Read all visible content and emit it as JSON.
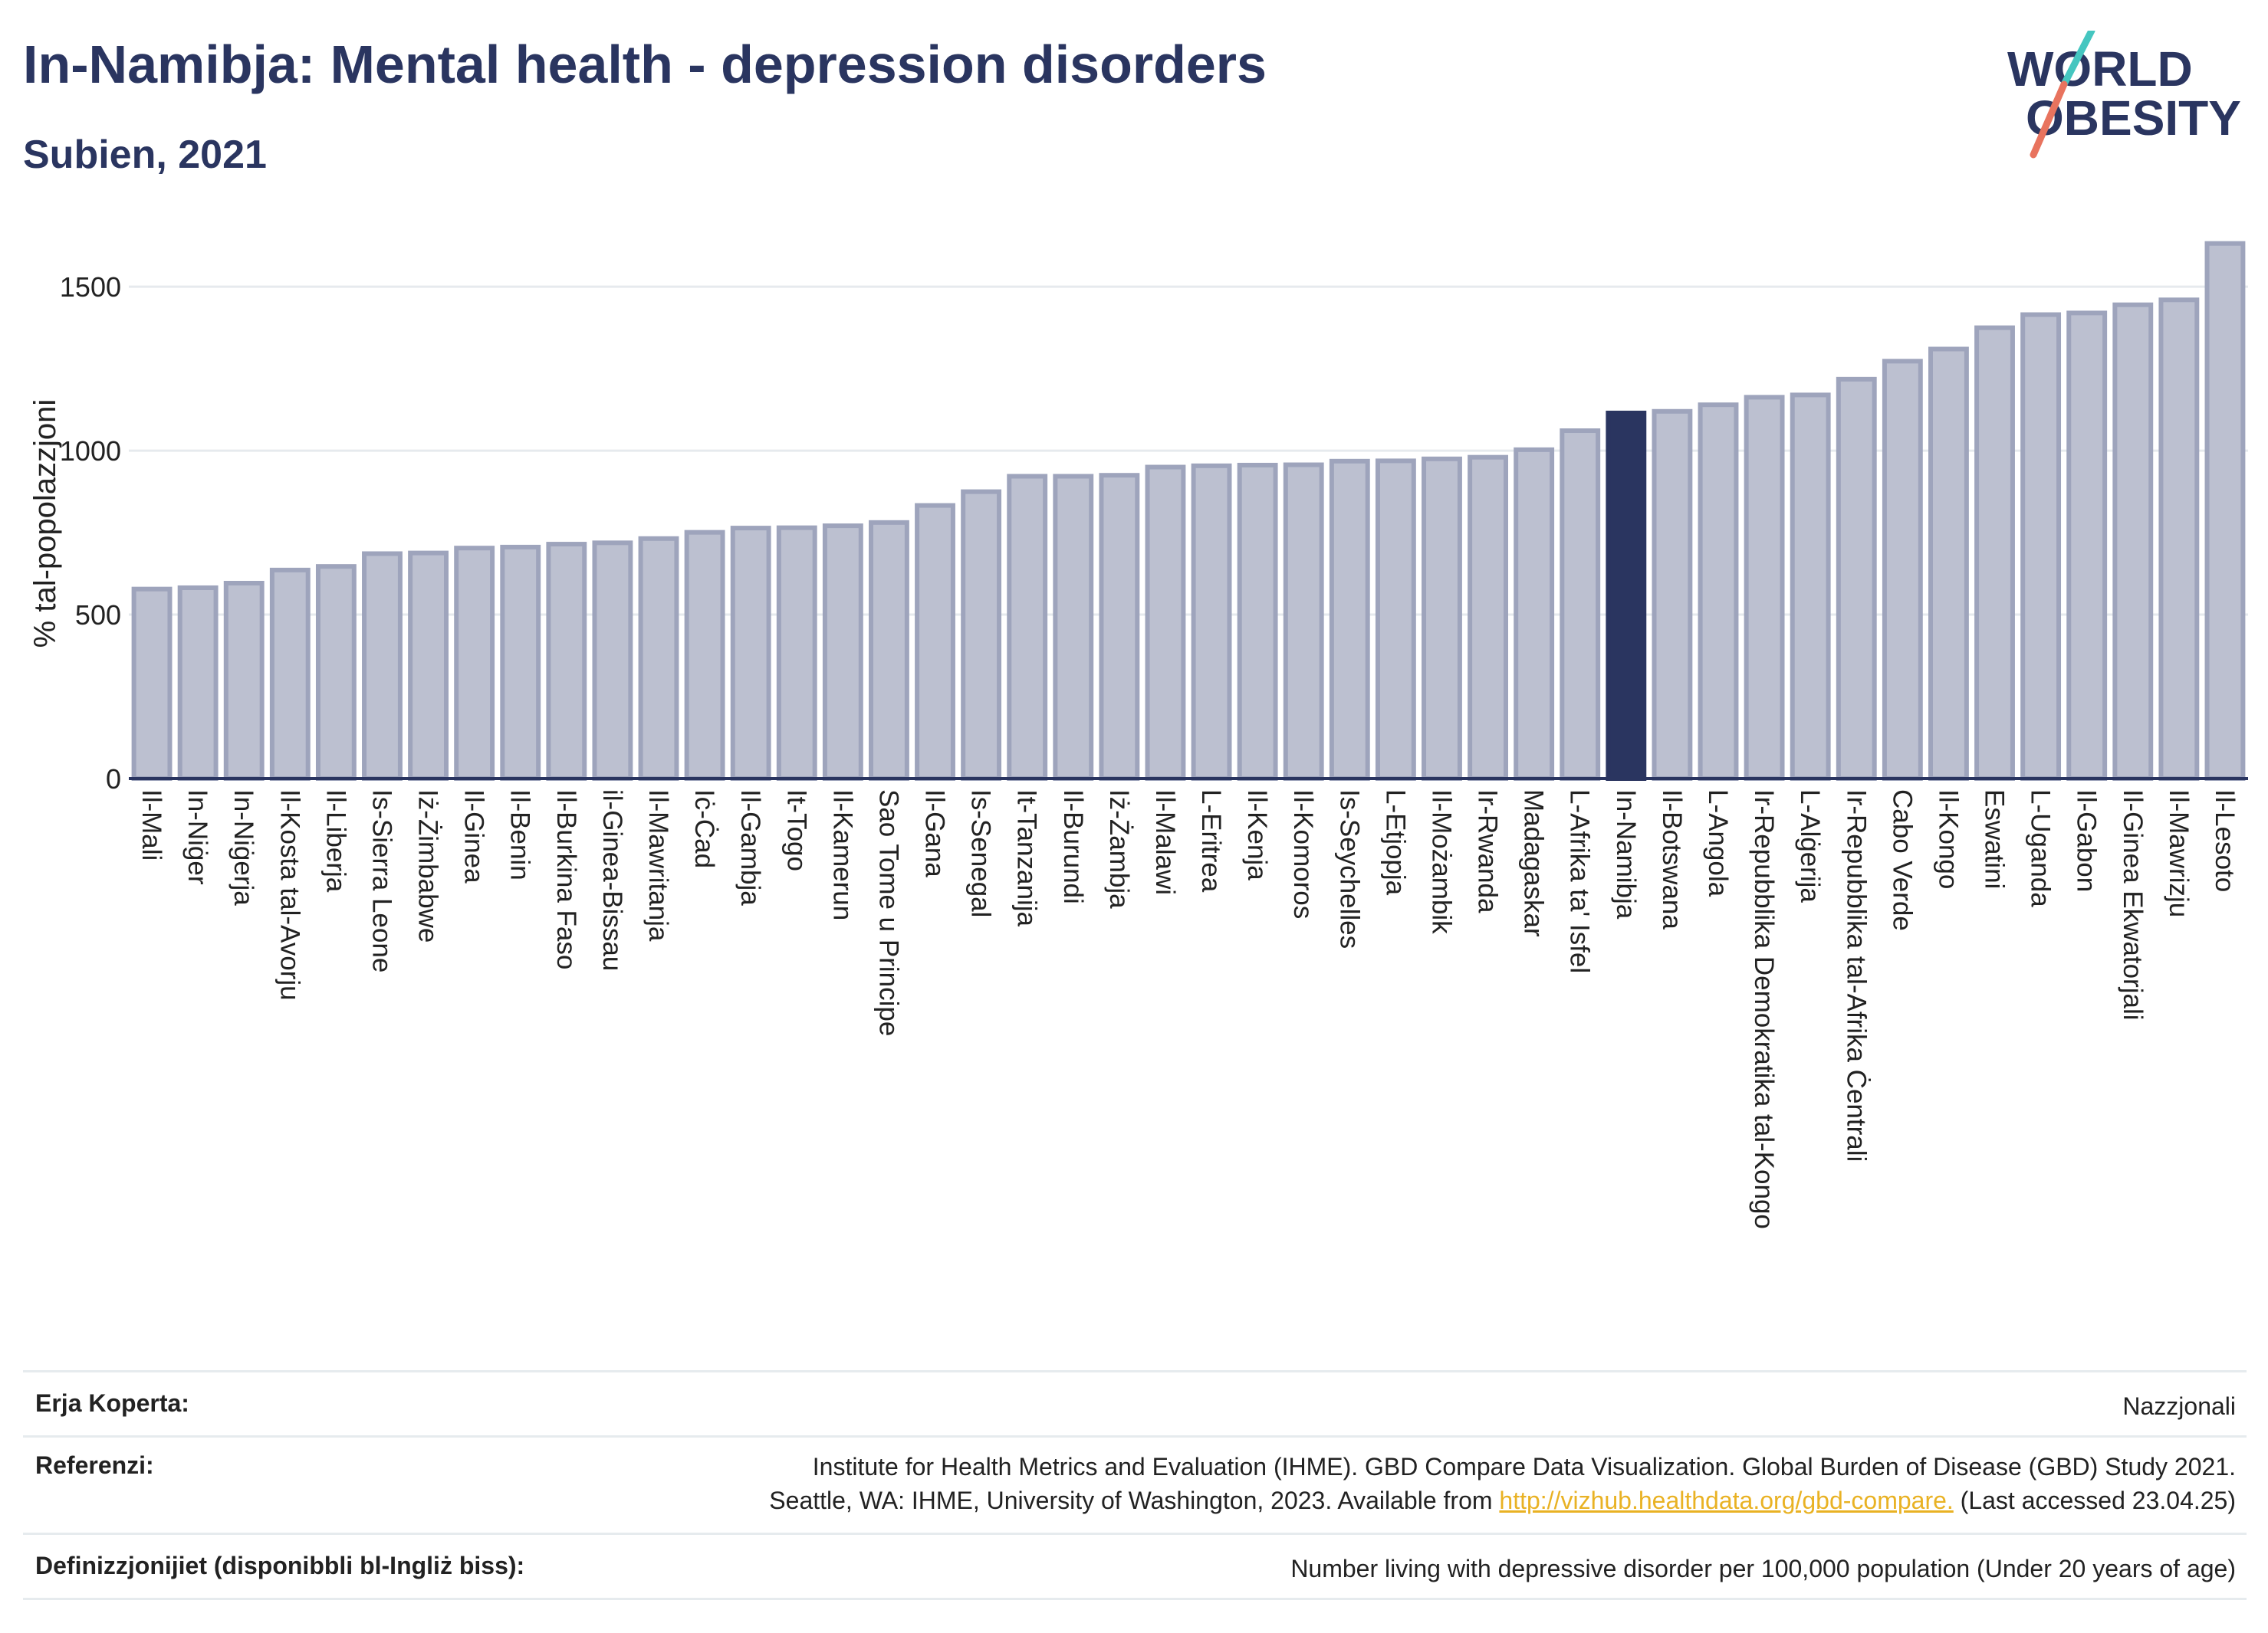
{
  "title": "In-Namibja: Mental health - depression disorders",
  "subtitle": "Subien, 2021",
  "logo": {
    "line1": "WORLD",
    "line2": "OBESITY"
  },
  "colors": {
    "bar": "#bcc0d0",
    "bar_stroke": "#9ea4bc",
    "highlight": "#2a3560",
    "grid": "#e6eaee",
    "title": "#2a3560",
    "accent_teal": "#45c6c0",
    "accent_coral": "#e8735e",
    "link": "#e9b224"
  },
  "chart_data": {
    "type": "bar",
    "ylabel": "% tal-popolazzjoni",
    "ylim": [
      0,
      1650
    ],
    "yticks": [
      0,
      500,
      1000,
      1500
    ],
    "highlight": "In-Namibja",
    "grid": true,
    "categories": [
      "Il-Mali",
      "In-Niġer",
      "In-Niġerja",
      "Il-Kosta tal-Avorju",
      "Il-Liberja",
      "Is-Sierra Leone",
      "Iż-Żimbabwe",
      "Il-Ginea",
      "Il-Benin",
      "Il-Burkina Faso",
      "il-Ginea-Bissau",
      "Il-Mawritanja",
      "Iċ-Ċad",
      "Il-Gambja",
      "It-Togo",
      "Il-Kamerun",
      "Sao Tome u Principe",
      "Il-Gana",
      "Is-Senegal",
      "It-Tanzanija",
      "Il-Burundi",
      "Iż-Żambja",
      "Il-Malawi",
      "L-Eritrea",
      "Il-Kenja",
      "Il-Komoros",
      "Is-Seychelles",
      "L-Etjopja",
      "Il-Możambik",
      "Ir-Rwanda",
      "Madagaskar",
      "L-Afrika ta' Isfel",
      "In-Namibja",
      "Il-Botswana",
      "L-Angola",
      "Ir-Repubblika Demokratika tal-Kongo",
      "L-Alġerija",
      "Ir-Repubblika tal-Afrika Ċentrali",
      "Cabo Verde",
      "Il-Kongo",
      "Eswatini",
      "L-Uganda",
      "Il-Gabon",
      "Il-Ginea Ekwatorjali",
      "Il-Mawrizju",
      "Il-Lesoto"
    ],
    "values": [
      578,
      582,
      596,
      636,
      647,
      686,
      688,
      703,
      706,
      715,
      719,
      732,
      751,
      764,
      765,
      771,
      781,
      833,
      875,
      922,
      922,
      925,
      950,
      954,
      956,
      957,
      968,
      969,
      975,
      980,
      1003,
      1061,
      1115,
      1120,
      1140,
      1163,
      1170,
      1218,
      1273,
      1310,
      1375,
      1415,
      1420,
      1445,
      1460,
      1632
    ]
  },
  "footer": {
    "coverage_label": "Erja Koperta:",
    "coverage_value": "Nazzjonali",
    "references_label": "Referenzi:",
    "references_line1": "Institute for Health Metrics and Evaluation (IHME). GBD Compare Data Visualization. Global Burden of Disease (GBD) Study 2021.",
    "references_line2_pre": "Seattle, WA: IHME, University of Washington, 2023. Available from ",
    "references_link": "http://vizhub.healthdata.org/gbd-compare.",
    "references_line2_post": " (Last accessed 23.04.25)",
    "definitions_label": "Definizzjonijiet (disponibbli bl-Ingliż biss):",
    "definitions_value": "Number living with depressive disorder per 100,000 population (Under 20 years of age)"
  }
}
